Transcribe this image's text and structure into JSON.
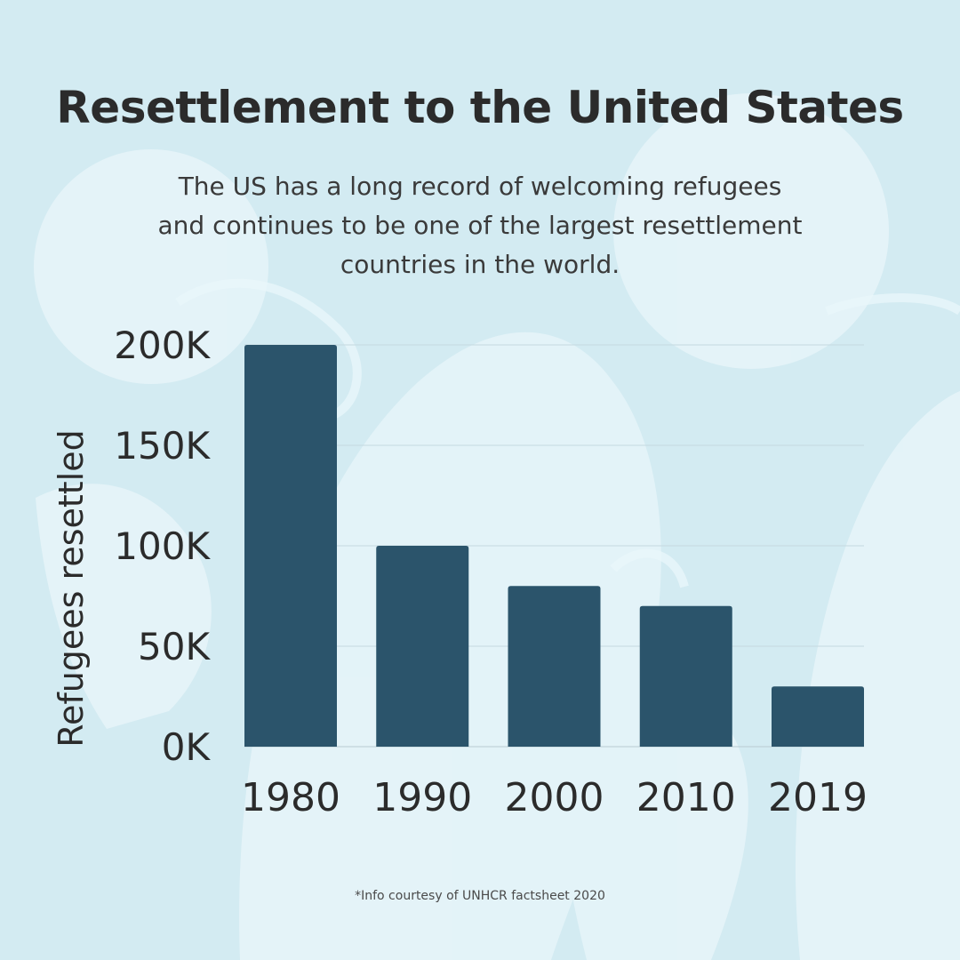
{
  "title": "Resettlement to the United States",
  "subtitle": "The US has a long record of welcoming refugees and continues to be one of the largest resettlement countries in the world.",
  "footnote": "*Info courtesy of UNHCR factsheet 2020",
  "colors": {
    "background": "#d3ebf2",
    "decor": "#e9f6fa",
    "bar": "#2b546b",
    "text": "#2b2b2b"
  },
  "chart_data": {
    "type": "bar",
    "title": "Resettlement to the United States",
    "xlabel": "",
    "ylabel": "Refugees resettled",
    "categories": [
      "1980",
      "1990",
      "2000",
      "2010",
      "2019"
    ],
    "values": [
      200000,
      100000,
      80000,
      70000,
      30000
    ],
    "ylim": [
      0,
      200000
    ],
    "yticks": [
      0,
      50000,
      100000,
      150000,
      200000
    ],
    "ytick_labels": [
      "0K",
      "50K",
      "100K",
      "150K",
      "200K"
    ],
    "grid": true,
    "legend": "none"
  }
}
